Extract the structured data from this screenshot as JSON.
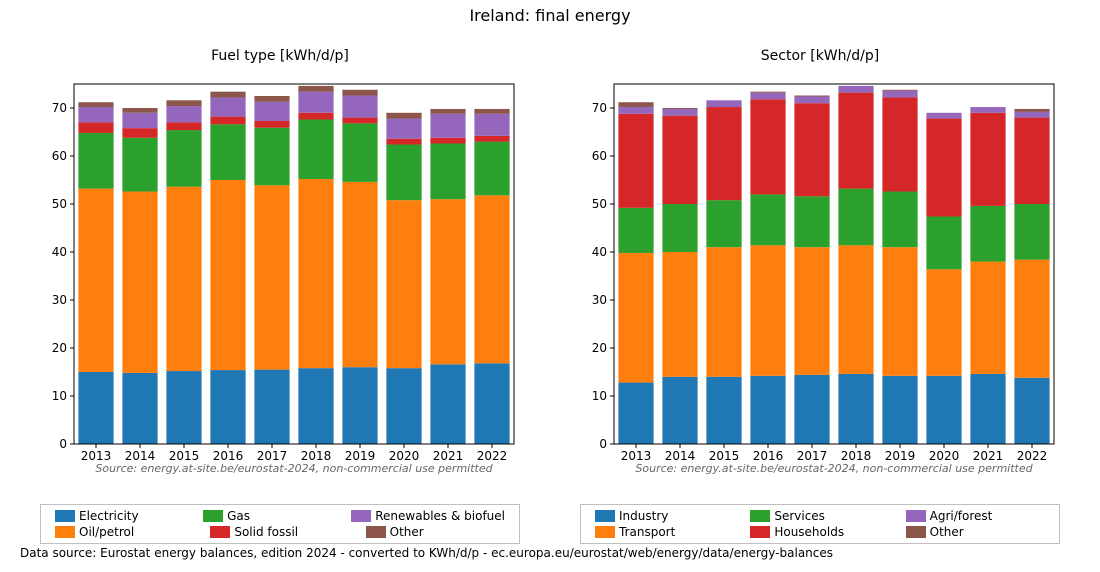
{
  "suptitle": "Ireland: final energy",
  "footer": "Data source: Eurostat energy balances, edition 2024 - converted to KWh/d/p - ec.europa.eu/eurostat/web/energy/data/energy-balances",
  "watermark": "Source: energy.at-site.be/eurostat-2024, non-commercial use permitted",
  "years": [
    "2013",
    "2014",
    "2015",
    "2016",
    "2017",
    "2018",
    "2019",
    "2020",
    "2021",
    "2022"
  ],
  "axis_color": "#000000",
  "tick_fontsize": 12,
  "title_fontsize": 14,
  "bar_group_width": 0.8,
  "panels": [
    {
      "key": "fuel",
      "title": "Fuel type [kWh/d/p]",
      "ylim": [
        0,
        75
      ],
      "ytick_step": 10,
      "series": [
        {
          "label": "Electricity",
          "color": "#1f77b4",
          "values": [
            15.0,
            14.8,
            15.2,
            15.4,
            15.5,
            15.8,
            16.0,
            15.8,
            16.6,
            16.8
          ]
        },
        {
          "label": "Oil/petrol",
          "color": "#ff7f0e",
          "values": [
            38.2,
            37.8,
            38.4,
            39.6,
            38.4,
            39.4,
            38.6,
            35.0,
            34.4,
            35.0
          ]
        },
        {
          "label": "Gas",
          "color": "#2ca02c",
          "values": [
            11.6,
            11.2,
            11.8,
            11.6,
            12.0,
            12.4,
            12.2,
            11.6,
            11.6,
            11.2
          ]
        },
        {
          "label": "Solid fossil",
          "color": "#d62728",
          "values": [
            2.2,
            2.0,
            1.6,
            1.6,
            1.4,
            1.4,
            1.2,
            1.2,
            1.2,
            1.2
          ]
        },
        {
          "label": "Renewables & biofuel",
          "color": "#9467bd",
          "values": [
            3.2,
            3.2,
            3.4,
            4.0,
            4.0,
            4.4,
            4.6,
            4.2,
            5.0,
            4.6
          ]
        },
        {
          "label": "Other",
          "color": "#8c564b",
          "values": [
            1.0,
            1.0,
            1.2,
            1.2,
            1.2,
            1.2,
            1.2,
            1.2,
            1.0,
            1.0
          ]
        }
      ],
      "legend_rows": [
        [
          "Electricity",
          "Gas",
          "Renewables & biofuel"
        ],
        [
          "Oil/petrol",
          "Solid fossil",
          "Other"
        ]
      ]
    },
    {
      "key": "sector",
      "title": "Sector [kWh/d/p]",
      "ylim": [
        0,
        75
      ],
      "ytick_step": 10,
      "series": [
        {
          "label": "Industry",
          "color": "#1f77b4",
          "values": [
            12.8,
            14.0,
            14.0,
            14.2,
            14.4,
            14.6,
            14.2,
            14.2,
            14.6,
            13.8
          ]
        },
        {
          "label": "Transport",
          "color": "#ff7f0e",
          "values": [
            27.0,
            26.0,
            27.0,
            27.2,
            26.6,
            26.8,
            26.8,
            22.2,
            23.4,
            24.6
          ]
        },
        {
          "label": "Services",
          "color": "#2ca02c",
          "values": [
            9.4,
            10.0,
            9.8,
            10.6,
            10.6,
            11.8,
            11.6,
            11.0,
            11.6,
            11.6
          ]
        },
        {
          "label": "Households",
          "color": "#d62728",
          "values": [
            19.6,
            18.4,
            19.4,
            19.8,
            19.4,
            20.0,
            19.6,
            20.4,
            19.4,
            18.0
          ]
        },
        {
          "label": "Agri/forest",
          "color": "#9467bd",
          "values": [
            1.4,
            1.4,
            1.4,
            1.4,
            1.4,
            1.4,
            1.4,
            1.2,
            1.2,
            1.2
          ]
        },
        {
          "label": "Other",
          "color": "#8c564b",
          "values": [
            1.0,
            0.2,
            0.0,
            0.2,
            0.2,
            0.0,
            0.2,
            0.0,
            0.0,
            0.6
          ]
        }
      ],
      "legend_rows": [
        [
          "Industry",
          "Services",
          "Agri/forest"
        ],
        [
          "Transport",
          "Households",
          "Other"
        ]
      ]
    }
  ]
}
